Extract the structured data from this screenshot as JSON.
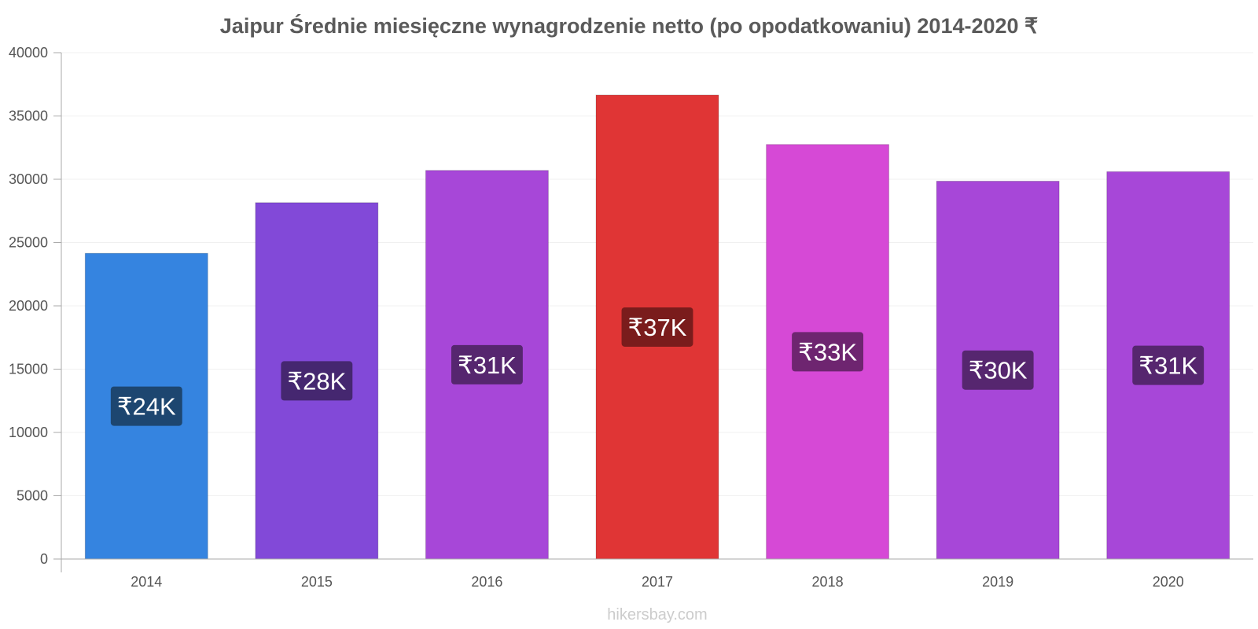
{
  "chart_data": {
    "type": "bar",
    "title": "Jaipur Średnie miesięczne wynagrodzenie netto (po opodatkowaniu) 2014-2020 ₹",
    "categories": [
      "2014",
      "2015",
      "2016",
      "2017",
      "2018",
      "2019",
      "2020"
    ],
    "values": [
      24150,
      28150,
      30700,
      36650,
      32750,
      29850,
      30600
    ],
    "data_labels": [
      "₹24K",
      "₹28K",
      "₹31K",
      "₹37K",
      "₹33K",
      "₹30K",
      "₹31K"
    ],
    "bar_colors": [
      "#3584e0",
      "#8249d8",
      "#a747d8",
      "#e03535",
      "#d649d6",
      "#a747d8",
      "#a747d8"
    ],
    "label_bg_colors": [
      "#1d4670",
      "#452770",
      "#56266f",
      "#7a1c1c",
      "#6e2570",
      "#56266f",
      "#56266f"
    ],
    "yticks": [
      "0",
      "5000",
      "10000",
      "15000",
      "20000",
      "25000",
      "30000",
      "35000",
      "40000"
    ],
    "ylim": [
      0,
      40000
    ],
    "xlabel": "",
    "ylabel": "",
    "grid": true,
    "legend": "none"
  },
  "watermark": "hikersbay.com"
}
